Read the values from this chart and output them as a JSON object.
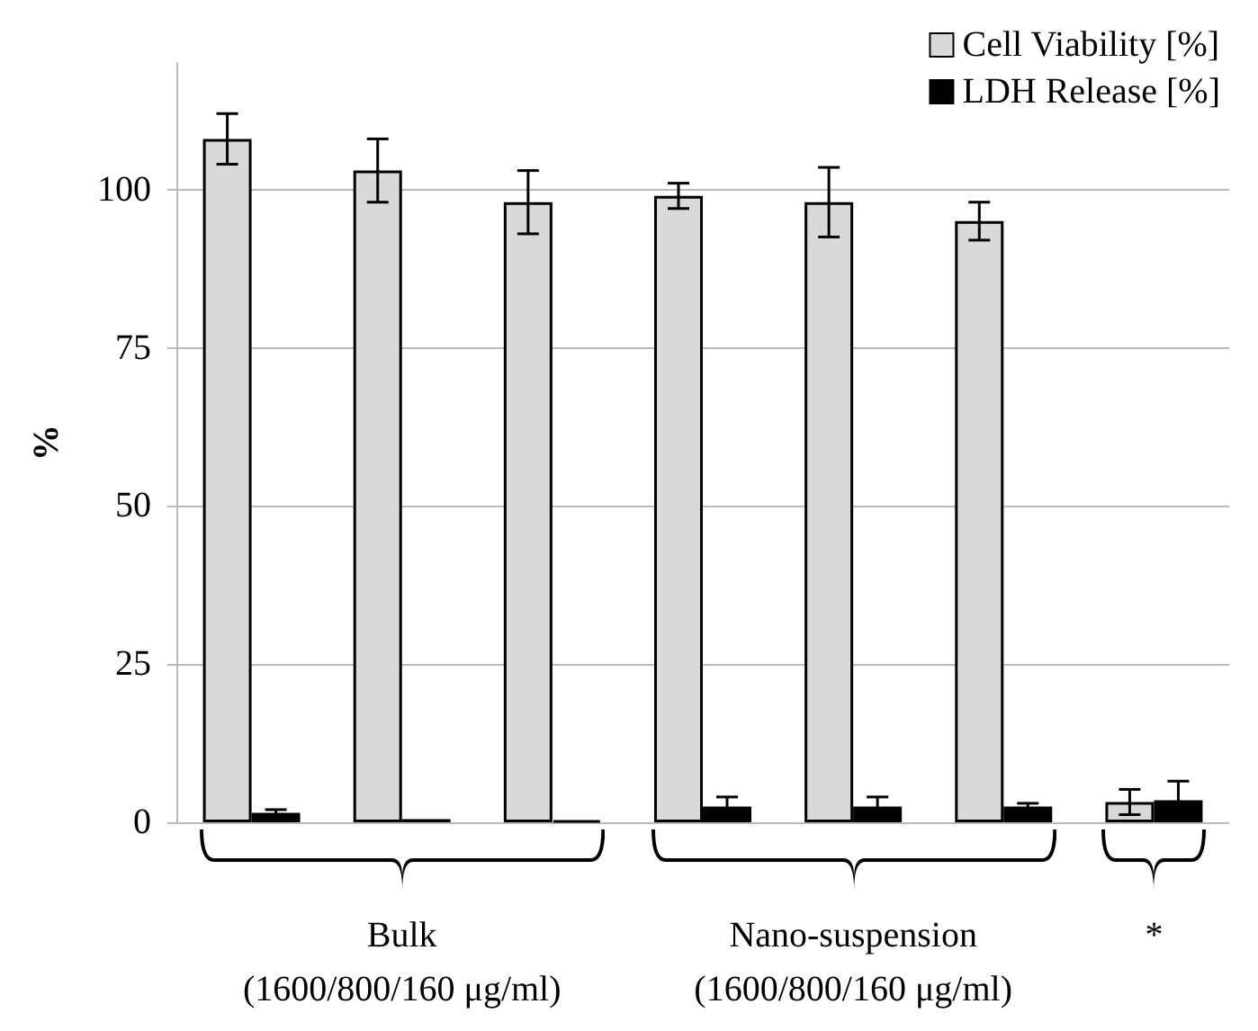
{
  "chart_data": {
    "type": "bar",
    "ylabel": "%",
    "categories": [
      null,
      "Bulk\n(1600/800/160 μg/ml)",
      null,
      null,
      "Nano-suspension\n(1600/800/160 μg/ml)",
      null,
      "*"
    ],
    "series": [
      {
        "name": "Cell Viability [%]",
        "color": "#d9d9d9",
        "values": [
          108,
          103,
          98,
          99,
          98,
          95,
          3.2
        ],
        "errors": [
          4,
          5,
          5,
          2,
          5.5,
          3,
          2
        ]
      },
      {
        "name": "LDH Release [%]",
        "color": "#000000",
        "values": [
          1.5,
          0.5,
          0.3,
          2.5,
          2.5,
          2.5,
          3.5
        ],
        "errors": [
          0.5,
          null,
          null,
          1.5,
          1.5,
          0.5,
          3
        ]
      }
    ],
    "ylim": [
      0,
      120
    ],
    "yticks": [
      0,
      25,
      50,
      75,
      100
    ],
    "grid": "y",
    "legend": "top right"
  }
}
